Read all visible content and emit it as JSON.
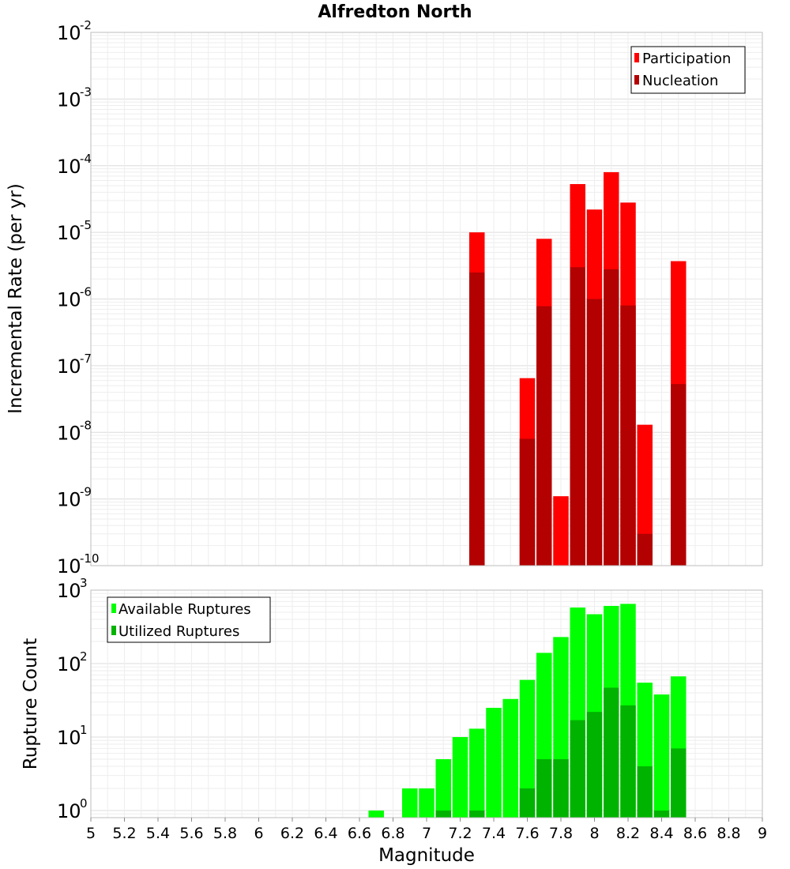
{
  "chart_data": [
    {
      "type": "bar",
      "title": "Alfredton North",
      "xlabel": "",
      "ylabel": "Incremental Rate (per yr)",
      "yscale": "log",
      "ylim": [
        1e-10,
        0.01
      ],
      "xlim": [
        5,
        9
      ],
      "ytick_exponents": [
        "-2",
        "-3",
        "-4",
        "-5",
        "-6",
        "-7",
        "-8",
        "-9",
        "-10"
      ],
      "grid": true,
      "legend_position": "top-right",
      "x": [
        7.3,
        7.6,
        7.7,
        7.8,
        7.9,
        8.0,
        8.1,
        8.2,
        8.3,
        8.5
      ],
      "series": [
        {
          "name": "Participation",
          "color": "#ff0000",
          "values": [
            1e-05,
            6.5e-08,
            8e-06,
            1.1e-09,
            5.3e-05,
            2.2e-05,
            8e-05,
            2.8e-05,
            1.3e-08,
            3.7e-06
          ]
        },
        {
          "name": "Nucleation",
          "color": "#b30000",
          "values": [
            2.5e-06,
            8e-09,
            7.8e-07,
            null,
            3e-06,
            1e-06,
            2.8e-06,
            8e-07,
            3e-10,
            5.3e-08
          ]
        }
      ]
    },
    {
      "type": "bar",
      "title": "",
      "xlabel": "Magnitude",
      "ylabel": "Rupture Count",
      "yscale": "log",
      "ylim": [
        0.8,
        1000
      ],
      "xlim": [
        5,
        9
      ],
      "ytick_exponents": [
        "3",
        "2",
        "1",
        "0"
      ],
      "grid": true,
      "legend_position": "top-left",
      "x": [
        6.7,
        6.9,
        7.0,
        7.1,
        7.2,
        7.3,
        7.4,
        7.5,
        7.6,
        7.7,
        7.8,
        7.9,
        8.0,
        8.1,
        8.2,
        8.3,
        8.4,
        8.5
      ],
      "xticks": [
        "5",
        "5.2",
        "5.4",
        "5.6",
        "5.8",
        "6",
        "6.2",
        "6.4",
        "6.6",
        "6.8",
        "7",
        "7.2",
        "7.4",
        "7.6",
        "7.8",
        "8",
        "8.2",
        "8.4",
        "8.6",
        "8.8",
        "9"
      ],
      "series": [
        {
          "name": "Available Ruptures",
          "color": "#00ff00",
          "values": [
            1,
            2,
            2,
            5,
            10,
            13,
            25,
            33,
            60,
            140,
            230,
            580,
            470,
            610,
            650,
            55,
            38,
            67
          ]
        },
        {
          "name": "Utilized Ruptures",
          "color": "#00b300",
          "values": [
            null,
            null,
            null,
            1,
            null,
            1,
            null,
            null,
            2,
            5,
            5,
            17,
            22,
            47,
            27,
            4,
            1,
            7
          ]
        }
      ]
    }
  ]
}
